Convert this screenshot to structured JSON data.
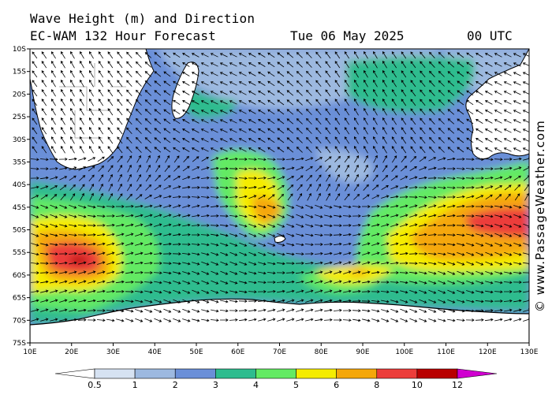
{
  "header": {
    "title": "Wave Height (m) and Direction",
    "model": "EC-WAM 132 Hour Forecast",
    "date": "Tue 06 May 2025",
    "time": "00 UTC"
  },
  "credit": "© www.PassageWeather.com",
  "axes": {
    "lat_labels": [
      "10S",
      "15S",
      "20S",
      "25S",
      "30S",
      "35S",
      "40S",
      "45S",
      "50S",
      "55S",
      "60S",
      "65S",
      "70S",
      "75S"
    ],
    "lon_labels": [
      "10E",
      "20E",
      "30E",
      "40E",
      "50E",
      "60E",
      "70E",
      "80E",
      "90E",
      "100E",
      "110E",
      "120E",
      "130E"
    ]
  },
  "colorbar": {
    "labels": [
      "0.5",
      "1",
      "2",
      "3",
      "4",
      "5",
      "6",
      "8",
      "10",
      "12"
    ],
    "colors": [
      "#ffffff",
      "#d6e2f2",
      "#9db9e0",
      "#6a8fd8",
      "#2ebc8e",
      "#63ea63",
      "#f5ec00",
      "#f5a70a",
      "#ec3d3a",
      "#b80000",
      "#d000d0"
    ]
  },
  "palette": {
    "land": "#ffffff",
    "ice": "#ffffff",
    "border": "#888888",
    "coast": "#000000"
  }
}
